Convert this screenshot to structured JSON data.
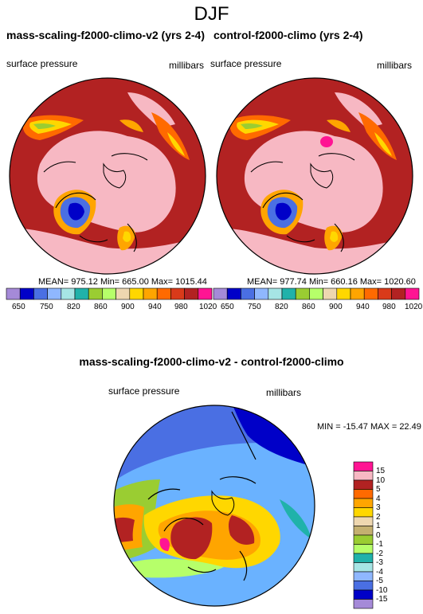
{
  "page": {
    "title": "DJF"
  },
  "colors": {
    "pink": "#f7b8c3",
    "darkred": "#b22222",
    "orange": "#ff6a00",
    "lightorange": "#ffa500",
    "yellow": "#ffd700",
    "tan": "#eed7b0",
    "olive": "#9acd32",
    "lightgreen": "#b6ff6a",
    "teal": "#20b2aa",
    "lightblue": "#8fb7ff",
    "blue": "#4a6fe3",
    "darkblue": "#0000c8",
    "lavender": "#a58ad8",
    "magenta": "#ff1493",
    "diffbg": "#6ab2ff"
  },
  "top_panels": [
    {
      "title": "mass-scaling-f2000-climo-v2 (yrs 2-4)",
      "field_label": "surface pressure",
      "units_label": "millibars",
      "stats": "MEAN= 975.12  Min= 665.00  Max= 1015.44"
    },
    {
      "title": "control-f2000-climo (yrs 2-4)",
      "field_label": "surface pressure",
      "units_label": "millibars",
      "stats": "MEAN= 977.74  Min= 660.16  Max= 1020.60"
    }
  ],
  "top_colorbar": {
    "labels": [
      "650",
      "750",
      "820",
      "860",
      "900",
      "940",
      "980",
      "1020"
    ],
    "colors": [
      "#a58ad8",
      "#0000c8",
      "#4a6fe3",
      "#8fb7ff",
      "#a6e5e5",
      "#20b2aa",
      "#9acd32",
      "#b6ff6a",
      "#eed7b0",
      "#ffd700",
      "#ffa500",
      "#ff6a00",
      "#d93a1a",
      "#b22222",
      "#ff1493"
    ]
  },
  "diff_panel": {
    "title": "mass-scaling-f2000-climo-v2 - control-f2000-climo",
    "field_label": "surface pressure",
    "units_label": "millibars",
    "stats": "MIN = -15.47 MAX =  22.49",
    "colorbar_labels": [
      "15",
      "10",
      "5",
      "4",
      "3",
      "2",
      "1",
      "0",
      "-1",
      "-2",
      "-3",
      "-4",
      "-5",
      "-10",
      "-15"
    ],
    "colorbar_colors": [
      "#ff1493",
      "#f7b8c3",
      "#b22222",
      "#ff6a00",
      "#ffa500",
      "#ffd700",
      "#eed7b0",
      "#c4b070",
      "#9acd32",
      "#b6ff6a",
      "#20b2aa",
      "#a6e5e5",
      "#8fb7ff",
      "#4a6fe3",
      "#0000c8",
      "#a58ad8"
    ]
  }
}
